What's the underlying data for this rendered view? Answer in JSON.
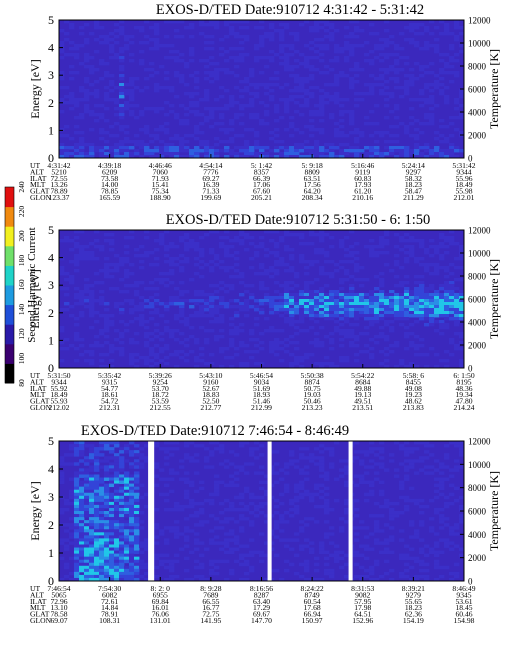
{
  "colorbar": {
    "label": "Second Harmonic Current",
    "ticks": [
      "80",
      "100",
      "120",
      "140",
      "160",
      "180",
      "200",
      "220",
      "240"
    ],
    "colors": [
      "#000000",
      "#3a0070",
      "#2a1aa8",
      "#1f4fd8",
      "#1e9be0",
      "#1fd3c8",
      "#6fe06a",
      "#f2f020",
      "#f08a10",
      "#e01010"
    ]
  },
  "chart_data": [
    {
      "type": "heatmap",
      "title": "EXOS-D/TED   Date:910712  4:31:42 - 5:31:42",
      "ylabel": "Energy [eV]",
      "y2label": "Temperature [K]",
      "ylim": [
        0,
        5
      ],
      "y2lim": [
        0,
        12000
      ],
      "yticks": [
        "0",
        "1",
        "2",
        "3",
        "4",
        "5"
      ],
      "y2ticks": [
        "0",
        "2000",
        "4000",
        "6000",
        "8000",
        "10000",
        "12000"
      ],
      "row_labels": [
        "UT",
        "ALT",
        "ILAT",
        "MLT",
        "GLAT",
        "GLON"
      ],
      "columns": [
        [
          "4:31:42",
          "5210",
          "72.55",
          "13.26",
          "78.89",
          "123.37"
        ],
        [
          "4:39:18",
          "6209",
          "73.58",
          "14.00",
          "78.85",
          "165.59"
        ],
        [
          "4:46:46",
          "7060",
          "71.93",
          "15.41",
          "75.34",
          "188.90"
        ],
        [
          "4:54:14",
          "7776",
          "69.27",
          "16.39",
          "71.33",
          "199.69"
        ],
        [
          "5: 1:42",
          "8357",
          "66.39",
          "17.06",
          "67.60",
          "205.21"
        ],
        [
          "5: 9:18",
          "8809",
          "63.51",
          "17.56",
          "64.20",
          "208.34"
        ],
        [
          "5:16:46",
          "9119",
          "60.83",
          "17.93",
          "61.20",
          "210.16"
        ],
        [
          "5:24:14",
          "9297",
          "58.32",
          "18.23",
          "58.47",
          "211.29"
        ],
        [
          "5:31:42",
          "9344",
          "55.96",
          "18.49",
          "55.98",
          "212.01"
        ]
      ],
      "band_center_eV": 0.5,
      "band_fade_from": 0,
      "gaps": []
    },
    {
      "type": "heatmap",
      "title": "EXOS-D/TED   Date:910712  5:31:50 - 6: 1:50",
      "ylabel": "Energy [eV]",
      "y2label": "Temperature [K]",
      "ylim": [
        0,
        5
      ],
      "y2lim": [
        0,
        12000
      ],
      "yticks": [
        "0",
        "1",
        "2",
        "3",
        "4",
        "5"
      ],
      "y2ticks": [
        "0",
        "2000",
        "4000",
        "6000",
        "8000",
        "10000",
        "12000"
      ],
      "row_labels": [
        "UT",
        "ALT",
        "ILAT",
        "MLT",
        "GLAT",
        "GLON"
      ],
      "columns": [
        [
          "5:31:50",
          "9344",
          "55.92",
          "18.49",
          "55.93",
          "212.02"
        ],
        [
          "5:35:42",
          "9315",
          "54.77",
          "18.61",
          "54.72",
          "212.31"
        ],
        [
          "5:39:26",
          "9254",
          "53.70",
          "18.72",
          "53.59",
          "212.55"
        ],
        [
          "5:43:10",
          "9160",
          "52.67",
          "18.83",
          "52.50",
          "212.77"
        ],
        [
          "5:46:54",
          "9034",
          "51.69",
          "18.93",
          "51.46",
          "212.99"
        ],
        [
          "5:50:38",
          "8874",
          "50.75",
          "19.03",
          "50.46",
          "213.23"
        ],
        [
          "5:54:22",
          "8684",
          "49.88",
          "19.13",
          "49.51",
          "213.51"
        ],
        [
          "5:58: 6",
          "8455",
          "49.08",
          "19.23",
          "48.62",
          "213.83"
        ],
        [
          "6: 1:50",
          "8195",
          "48.36",
          "19.34",
          "47.80",
          "214.24"
        ]
      ],
      "band_center_eV": 2.3,
      "band_fade_from": 0.25,
      "gaps": []
    },
    {
      "type": "heatmap",
      "title": "EXOS-D/TED   Date:910712  7:46:54 - 8:46:49",
      "ylabel": "Energy [eV]",
      "y2label": "Temperature [K]",
      "ylim": [
        0,
        5
      ],
      "y2lim": [
        0,
        12000
      ],
      "yticks": [
        "0",
        "1",
        "2",
        "3",
        "4",
        "5"
      ],
      "y2ticks": [
        "0",
        "2000",
        "4000",
        "6000",
        "8000",
        "10000",
        "12000"
      ],
      "row_labels": [
        "UT",
        "ALT",
        "ILAT",
        "MLT",
        "GLAT",
        "GLON"
      ],
      "columns": [
        [
          "7:46:54",
          "5065",
          "72.96",
          "13.10",
          "78.58",
          "69.07"
        ],
        [
          "7:54:30",
          "6082",
          "72.61",
          "14.84",
          "78.91",
          "108.31"
        ],
        [
          "8: 2: 0",
          "6955",
          "69.84",
          "16.01",
          "76.06",
          "131.01"
        ],
        [
          "8: 9:28",
          "7689",
          "66.55",
          "16.77",
          "72.75",
          "141.95"
        ],
        [
          "8:16:56",
          "8287",
          "63.40",
          "17.29",
          "69.67",
          "147.70"
        ],
        [
          "8:24:22",
          "8749",
          "60.54",
          "17.68",
          "66.94",
          "150.97"
        ],
        [
          "8:31:53",
          "9082",
          "57.95",
          "17.98",
          "64.51",
          "152.96"
        ],
        [
          "8:39:21",
          "9279",
          "55.65",
          "18.23",
          "62.36",
          "154.19"
        ],
        [
          "8:46:49",
          "9345",
          "53.61",
          "18.45",
          "60.46",
          "154.98"
        ]
      ],
      "band_center_eV": 0,
      "band_fade_from": 0,
      "gaps": [
        [
          0.22,
          0.235
        ],
        [
          0.515,
          0.525
        ],
        [
          0.715,
          0.725
        ]
      ]
    }
  ]
}
